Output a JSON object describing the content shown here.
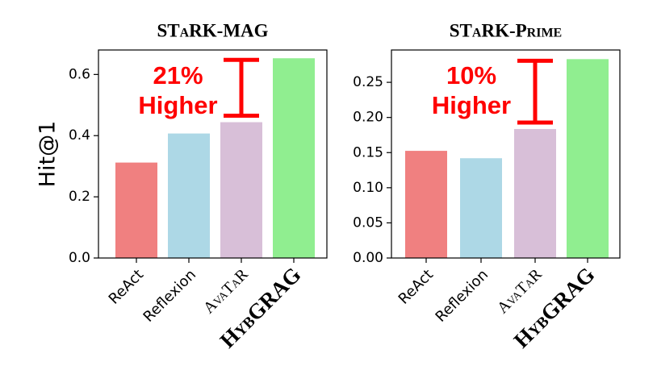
{
  "chart_data": [
    {
      "type": "bar",
      "title": "STaRK-MAG",
      "ylabel": "Hit@1",
      "categories": [
        "ReAct",
        "Reflexion",
        "AvaTaR",
        "HybGRAG"
      ],
      "values": [
        0.312,
        0.407,
        0.444,
        0.653
      ],
      "colors": [
        "#f08080",
        "#add8e6",
        "#d8bfd8",
        "#90ee90"
      ],
      "ylim": [
        0,
        0.68
      ],
      "yticks": [
        {
          "value": 0,
          "label": "0.0"
        },
        0.2,
        0.4,
        0.6
      ],
      "annotation": [
        "21%",
        "Higher"
      ]
    },
    {
      "type": "bar",
      "title": "STaRK-Prime",
      "categories": [
        "ReAct",
        "Reflexion",
        "AvaTaR",
        "HybGRAG"
      ],
      "values": [
        0.1525,
        0.142,
        0.1835,
        0.283
      ],
      "colors": [
        "#f08080",
        "#add8e6",
        "#d8bfd8",
        "#90ee90"
      ],
      "ylim": [
        0,
        0.296
      ],
      "yticks": [
        {
          "value": 0,
          "label": "0.00"
        },
        {
          "value": 0.05,
          "label": "0.05"
        },
        {
          "value": 0.1,
          "label": "0.10"
        },
        {
          "value": 0.15,
          "label": "0.15"
        },
        {
          "value": 0.2,
          "label": "0.20"
        },
        0.25
      ],
      "annotation": [
        "10%",
        "Higher"
      ]
    }
  ]
}
